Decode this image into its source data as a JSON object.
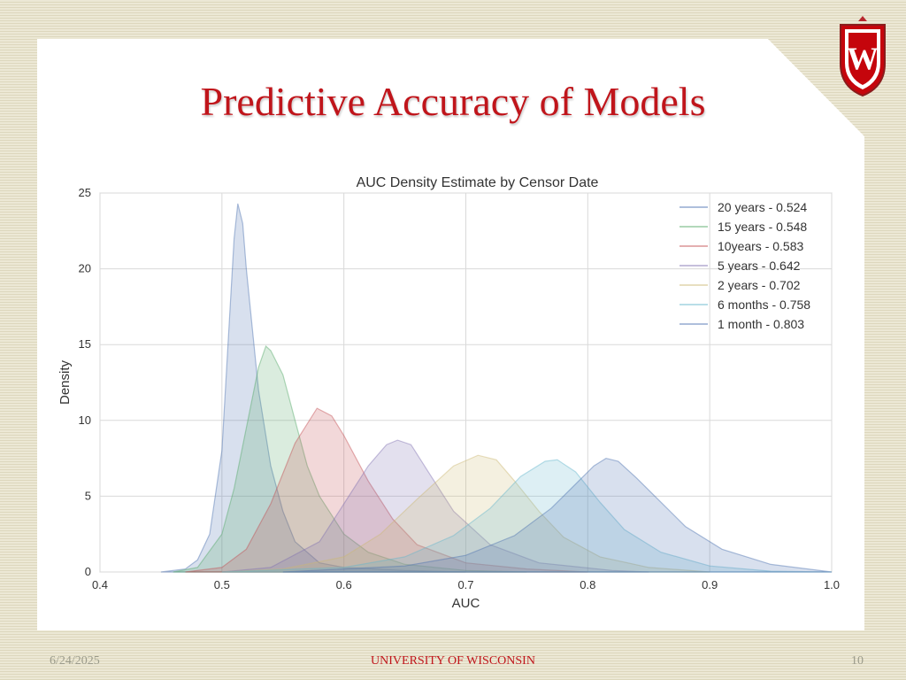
{
  "slide": {
    "title": "Predictive Accuracy of Models",
    "footer_date": "6/24/2025",
    "footer_center": "UNIVERSITY OF WISCONSIN",
    "page_number": "10",
    "logo_letter": "W"
  },
  "chart_data": {
    "type": "area",
    "title": "AUC Density Estimate by Censor Date",
    "xlabel": "AUC",
    "ylabel": "Density",
    "xlim": [
      0.4,
      1.0
    ],
    "ylim": [
      0,
      25
    ],
    "xticks": [
      "0.4",
      "0.5",
      "0.6",
      "0.7",
      "0.8",
      "0.9",
      "1.0"
    ],
    "yticks": [
      "0",
      "5",
      "10",
      "15",
      "20",
      "25"
    ],
    "grid": true,
    "legend_position": "top-right",
    "series": [
      {
        "name": "20 years - 0.524",
        "color": "#4c72b0",
        "peak_x": 0.513,
        "peak_y": 24.3,
        "points": [
          [
            0.45,
            0
          ],
          [
            0.47,
            0.2
          ],
          [
            0.48,
            0.8
          ],
          [
            0.49,
            2.5
          ],
          [
            0.5,
            8
          ],
          [
            0.505,
            15
          ],
          [
            0.51,
            22
          ],
          [
            0.513,
            24.3
          ],
          [
            0.517,
            23
          ],
          [
            0.52,
            20
          ],
          [
            0.53,
            12
          ],
          [
            0.54,
            7
          ],
          [
            0.55,
            4
          ],
          [
            0.56,
            2
          ],
          [
            0.58,
            0.6
          ],
          [
            0.6,
            0.3
          ],
          [
            0.65,
            0.1
          ],
          [
            0.7,
            0
          ]
        ]
      },
      {
        "name": "15 years - 0.548",
        "color": "#55a868",
        "peak_x": 0.536,
        "peak_y": 14.9,
        "points": [
          [
            0.46,
            0
          ],
          [
            0.48,
            0.3
          ],
          [
            0.5,
            2.5
          ],
          [
            0.51,
            5.5
          ],
          [
            0.52,
            9.5
          ],
          [
            0.53,
            13.5
          ],
          [
            0.536,
            14.9
          ],
          [
            0.54,
            14.6
          ],
          [
            0.55,
            13
          ],
          [
            0.56,
            10
          ],
          [
            0.57,
            7
          ],
          [
            0.58,
            5
          ],
          [
            0.6,
            2.5
          ],
          [
            0.62,
            1.3
          ],
          [
            0.65,
            0.5
          ],
          [
            0.7,
            0.1
          ],
          [
            0.75,
            0
          ]
        ]
      },
      {
        "name": "10years - 0.583",
        "color": "#c44e52",
        "peak_x": 0.578,
        "peak_y": 10.8,
        "points": [
          [
            0.47,
            0
          ],
          [
            0.5,
            0.3
          ],
          [
            0.52,
            1.5
          ],
          [
            0.54,
            4.5
          ],
          [
            0.56,
            8.5
          ],
          [
            0.578,
            10.8
          ],
          [
            0.59,
            10.3
          ],
          [
            0.6,
            9
          ],
          [
            0.62,
            6
          ],
          [
            0.64,
            3.5
          ],
          [
            0.66,
            1.8
          ],
          [
            0.7,
            0.6
          ],
          [
            0.75,
            0.2
          ],
          [
            0.8,
            0
          ]
        ]
      },
      {
        "name": "5 years - 0.642",
        "color": "#8172b2",
        "peak_x": 0.644,
        "peak_y": 8.7,
        "points": [
          [
            0.5,
            0
          ],
          [
            0.54,
            0.3
          ],
          [
            0.58,
            2
          ],
          [
            0.6,
            4.5
          ],
          [
            0.62,
            7
          ],
          [
            0.635,
            8.4
          ],
          [
            0.644,
            8.7
          ],
          [
            0.655,
            8.4
          ],
          [
            0.67,
            6.5
          ],
          [
            0.69,
            4
          ],
          [
            0.72,
            1.8
          ],
          [
            0.76,
            0.6
          ],
          [
            0.82,
            0.1
          ],
          [
            0.85,
            0
          ]
        ]
      },
      {
        "name": "2 years - 0.702",
        "color": "#ccb974",
        "peak_x": 0.71,
        "peak_y": 7.7,
        "points": [
          [
            0.5,
            0
          ],
          [
            0.55,
            0.2
          ],
          [
            0.6,
            1
          ],
          [
            0.63,
            2.5
          ],
          [
            0.66,
            4.8
          ],
          [
            0.69,
            7
          ],
          [
            0.71,
            7.7
          ],
          [
            0.725,
            7.4
          ],
          [
            0.74,
            6
          ],
          [
            0.76,
            4
          ],
          [
            0.78,
            2.3
          ],
          [
            0.81,
            1
          ],
          [
            0.85,
            0.3
          ],
          [
            0.9,
            0
          ]
        ]
      },
      {
        "name": "6 months - 0.758",
        "color": "#64b5cd",
        "peak_x": 0.77,
        "peak_y": 7.4,
        "points": [
          [
            0.5,
            0
          ],
          [
            0.6,
            0.3
          ],
          [
            0.65,
            1
          ],
          [
            0.69,
            2.4
          ],
          [
            0.72,
            4.2
          ],
          [
            0.745,
            6.3
          ],
          [
            0.765,
            7.3
          ],
          [
            0.775,
            7.4
          ],
          [
            0.79,
            6.6
          ],
          [
            0.81,
            4.6
          ],
          [
            0.83,
            2.8
          ],
          [
            0.86,
            1.3
          ],
          [
            0.9,
            0.4
          ],
          [
            0.95,
            0.05
          ],
          [
            1.0,
            0
          ]
        ]
      },
      {
        "name": "1 month - 0.803",
        "color": "#4c72b0",
        "peak_x": 0.815,
        "peak_y": 7.5,
        "points": [
          [
            0.55,
            0
          ],
          [
            0.65,
            0.4
          ],
          [
            0.7,
            1.1
          ],
          [
            0.74,
            2.4
          ],
          [
            0.77,
            4.2
          ],
          [
            0.79,
            5.8
          ],
          [
            0.805,
            7
          ],
          [
            0.815,
            7.5
          ],
          [
            0.825,
            7.3
          ],
          [
            0.84,
            6.2
          ],
          [
            0.86,
            4.6
          ],
          [
            0.88,
            3
          ],
          [
            0.91,
            1.5
          ],
          [
            0.95,
            0.5
          ],
          [
            1.0,
            0
          ]
        ]
      }
    ]
  }
}
